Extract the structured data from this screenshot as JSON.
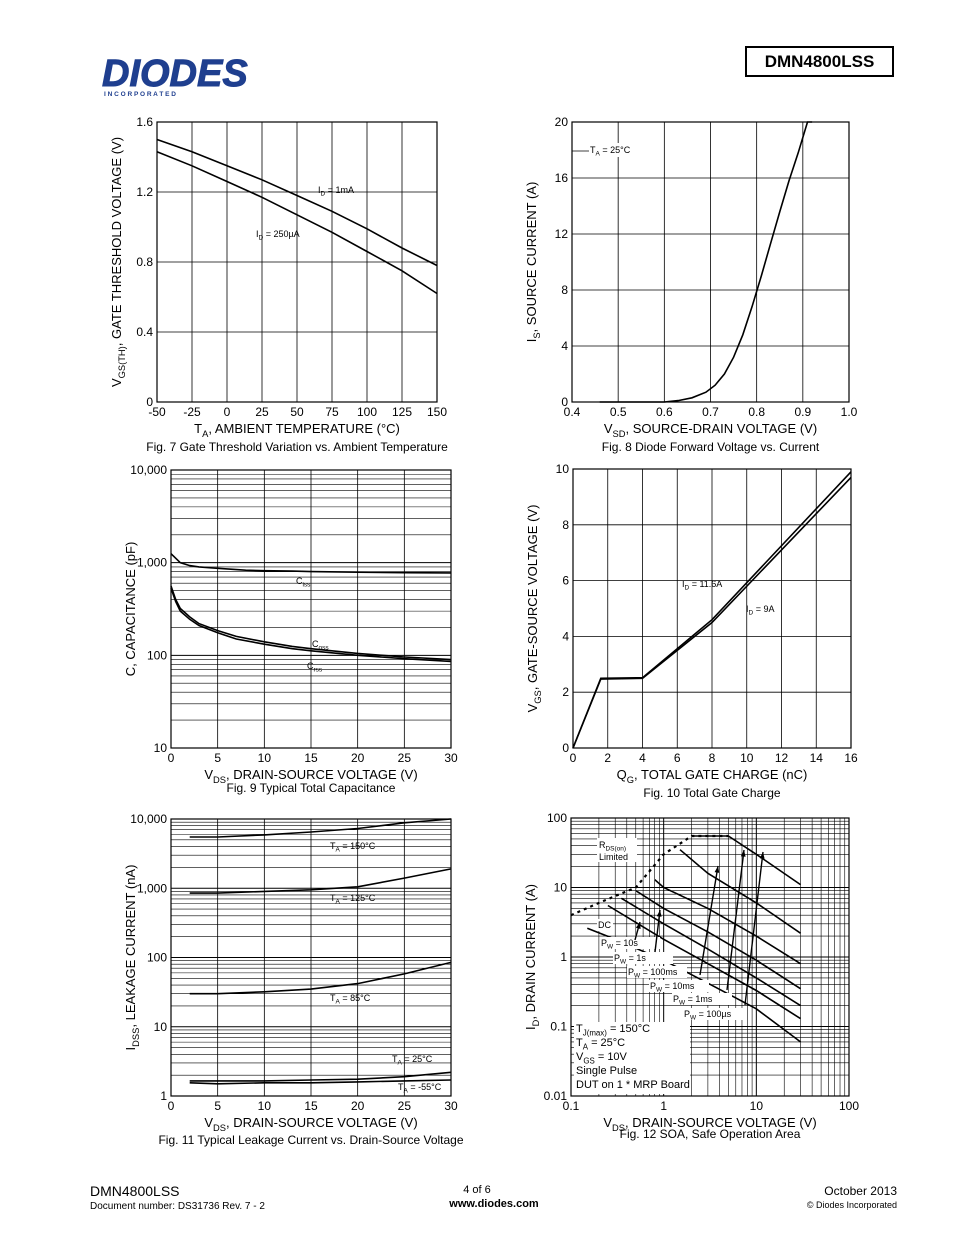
{
  "header": {
    "logo_text": "DIODES",
    "logo_sub": "I N C O R P O R A T E D",
    "part_number": "DMN4800LSS"
  },
  "footer": {
    "part": "DMN4800LSS",
    "doc": "Document number: DS31736 Rev. 7 - 2",
    "page": "4 of 6",
    "url": "www.diodes.com",
    "date": "October 2013",
    "copyright": "© Diodes Incorporated"
  },
  "chart_data": [
    {
      "id": "fig7",
      "type": "line",
      "title": "Fig. 7 Gate Threshold Variation vs. Ambient Temperature",
      "xlabel_main": "T",
      "xlabel_sub": "A",
      "xlabel_rest": ", AMBIENT TEMPERATURE (°C)",
      "ylabel_main": "V",
      "ylabel_sub": "GS(TH)",
      "ylabel_rest": ", GATE THRESHOLD VOLTAGE (V)",
      "xlim": [
        -50,
        150
      ],
      "ylim": [
        0,
        1.6
      ],
      "x_ticks": [
        "-50",
        "-25",
        "0",
        "25",
        "50",
        "75",
        "100",
        "125",
        "150"
      ],
      "y_ticks": [
        "0",
        "0.4",
        "0.8",
        "1.2",
        "1.6"
      ],
      "series": [
        {
          "name": "ID = 1mA",
          "label_main": "I",
          "label_sub": "D",
          "label_rest": " = 1mA",
          "x": [
            -50,
            -25,
            0,
            25,
            50,
            75,
            100,
            125,
            150
          ],
          "y": [
            1.5,
            1.43,
            1.35,
            1.27,
            1.18,
            1.09,
            0.99,
            0.88,
            0.78
          ]
        },
        {
          "name": "ID = 250µA",
          "label_main": "I",
          "label_sub": "D",
          "label_rest": " = 250µA",
          "x": [
            -50,
            -25,
            0,
            25,
            50,
            75,
            100,
            125,
            150
          ],
          "y": [
            1.43,
            1.35,
            1.26,
            1.17,
            1.07,
            0.97,
            0.86,
            0.75,
            0.62
          ]
        }
      ]
    },
    {
      "id": "fig8",
      "type": "line",
      "title": "Fig. 8 Diode Forward Voltage vs. Current",
      "xlabel_main": "V",
      "xlabel_sub": "SD",
      "xlabel_rest": ", SOURCE-DRAIN VOLTAGE (V)",
      "ylabel_main": "I",
      "ylabel_sub": "S",
      "ylabel_rest": ", SOURCE CURRENT (A)",
      "xlim": [
        0.4,
        1.0
      ],
      "ylim": [
        0,
        20
      ],
      "x_ticks": [
        "0.4",
        "0.5",
        "0.6",
        "0.7",
        "0.8",
        "0.9",
        "1.0"
      ],
      "y_ticks": [
        "0",
        "4",
        "8",
        "12",
        "16",
        "20"
      ],
      "annotation_main": "T",
      "annotation_sub": "A",
      "annotation_rest": " = 25°C",
      "series": [
        {
          "x": [
            0.46,
            0.6,
            0.63,
            0.66,
            0.69,
            0.71,
            0.73,
            0.75,
            0.77,
            0.79,
            0.81,
            0.83,
            0.85,
            0.87,
            0.89,
            0.91,
            0.92
          ],
          "y": [
            0,
            0,
            0.1,
            0.3,
            0.7,
            1.2,
            2.0,
            3.2,
            4.8,
            6.8,
            9.0,
            11.3,
            13.6,
            15.8,
            17.8,
            20.2,
            21.0
          ]
        }
      ]
    },
    {
      "id": "fig9",
      "type": "line",
      "title": "Fig. 9 Typical Total Capacitance",
      "xlabel_main": "V",
      "xlabel_sub": "DS",
      "xlabel_rest": ", DRAIN-SOURCE VOLTAGE (V)",
      "ylabel_main": "",
      "ylabel_sub": "",
      "ylabel_rest": "C, CAPACITANCE (pF)",
      "xlim": [
        0,
        30
      ],
      "ylim": [
        10,
        10000
      ],
      "yscale": "log",
      "x_ticks": [
        "0",
        "5",
        "10",
        "15",
        "20",
        "25",
        "30"
      ],
      "y_ticks": [
        "10",
        "100",
        "1,000",
        "10,000"
      ],
      "series": [
        {
          "name": "Ciss",
          "label_main": "C",
          "label_sub": "iss",
          "x": [
            0,
            1,
            2,
            3,
            5,
            8,
            10,
            13,
            15,
            20,
            25,
            30
          ],
          "y": [
            1250,
            1000,
            930,
            900,
            870,
            830,
            820,
            810,
            800,
            790,
            780,
            775
          ]
        },
        {
          "name": "Coss",
          "label_main": "C",
          "label_sub": "oss",
          "x": [
            0,
            0.5,
            1,
            2,
            3,
            5,
            7,
            10,
            13,
            15,
            20,
            25,
            30
          ],
          "y": [
            560,
            400,
            320,
            260,
            220,
            185,
            160,
            140,
            125,
            118,
            105,
            96,
            90
          ]
        },
        {
          "name": "Crss",
          "label_main": "C",
          "label_sub": "rss",
          "x": [
            0,
            0.5,
            1,
            2,
            3,
            5,
            7,
            10,
            13,
            15,
            20,
            25,
            30
          ],
          "y": [
            530,
            380,
            300,
            245,
            210,
            175,
            150,
            132,
            118,
            112,
            100,
            92,
            86
          ]
        }
      ]
    },
    {
      "id": "fig10",
      "type": "line",
      "title": "Fig. 10 Total Gate Charge",
      "xlabel_main": "Q",
      "xlabel_sub": "G",
      "xlabel_rest": ", TOTAL GATE CHARGE (nC)",
      "ylabel_main": "V",
      "ylabel_sub": "GS",
      "ylabel_rest": ", GATE-SOURCE VOLTAGE (V)",
      "xlim": [
        0,
        16
      ],
      "ylim": [
        0,
        10
      ],
      "x_ticks": [
        "0",
        "2",
        "4",
        "6",
        "8",
        "10",
        "12",
        "14",
        "16"
      ],
      "y_ticks": [
        "0",
        "2",
        "4",
        "6",
        "8",
        "10"
      ],
      "series": [
        {
          "name": "ID = 11.6A",
          "label_main": "I",
          "label_sub": "D",
          "label_rest": " = 11.6A",
          "x": [
            0,
            1.6,
            4.0,
            8.0,
            16.0
          ],
          "y": [
            0,
            2.5,
            2.52,
            4.6,
            9.9
          ]
        },
        {
          "name": "ID = 9A",
          "label_main": "I",
          "label_sub": "D",
          "label_rest": " = 9A",
          "x": [
            0,
            1.6,
            4.0,
            8.0,
            16.0
          ],
          "y": [
            0,
            2.47,
            2.5,
            4.5,
            9.7
          ]
        }
      ]
    },
    {
      "id": "fig11",
      "type": "line",
      "title": "Fig. 11 Typical Leakage Current vs. Drain-Source Voltage",
      "xlabel_main": "V",
      "xlabel_sub": "DS",
      "xlabel_rest": ", DRAIN-SOURCE VOLTAGE (V)",
      "ylabel_main": "I",
      "ylabel_sub": "DSS",
      "ylabel_rest": ", LEAKAGE CURRENT (nA)",
      "xlim": [
        0,
        30
      ],
      "ylim": [
        1,
        10000
      ],
      "yscale": "log",
      "x_ticks": [
        "0",
        "5",
        "10",
        "15",
        "20",
        "25",
        "30"
      ],
      "y_ticks": [
        "1",
        "10",
        "100",
        "1,000",
        "10,000"
      ],
      "series": [
        {
          "name": "TA = 150°C",
          "label_main": "T",
          "label_sub": "A",
          "label_rest": " = 150°C",
          "x": [
            2,
            5,
            10,
            15,
            20,
            25,
            30
          ],
          "y": [
            5500,
            5500,
            5900,
            6500,
            7300,
            8800,
            11000
          ]
        },
        {
          "name": "TA = 125°C",
          "label_main": "T",
          "label_sub": "A",
          "label_rest": " = 125°C",
          "x": [
            2,
            5,
            10,
            15,
            20,
            25,
            30
          ],
          "y": [
            850,
            850,
            900,
            950,
            1050,
            1400,
            1900
          ]
        },
        {
          "name": "TA = 85°C",
          "label_main": "T",
          "label_sub": "A",
          "label_rest": " = 85°C",
          "x": [
            2,
            5,
            10,
            15,
            20,
            25,
            30
          ],
          "y": [
            30,
            30,
            32,
            35,
            42,
            58,
            85
          ]
        },
        {
          "name": "TA = 25°C",
          "label_main": "T",
          "label_sub": "A",
          "label_rest": " = 25°C",
          "x": [
            2,
            5,
            10,
            15,
            20,
            25,
            30
          ],
          "y": [
            1.65,
            1.65,
            1.65,
            1.7,
            1.75,
            1.9,
            2.2
          ]
        },
        {
          "name": "TA = -55°C",
          "label_main": "T",
          "label_sub": "A",
          "label_rest": " = -55°C",
          "x": [
            2,
            5,
            10,
            15,
            20,
            25,
            30
          ],
          "y": [
            1.55,
            1.5,
            1.55,
            1.55,
            1.6,
            1.65,
            1.7
          ]
        }
      ]
    },
    {
      "id": "fig12",
      "type": "line",
      "title": "Fig. 12 SOA, Safe Operation Area",
      "xlabel_main": "V",
      "xlabel_sub": "DS",
      "xlabel_rest": ", DRAIN-SOURCE VOLTAGE (V)",
      "ylabel_main": "I",
      "ylabel_sub": "D",
      "ylabel_rest": ", DRAIN CURRENT (A)",
      "xlim": [
        0.1,
        100
      ],
      "ylim": [
        0.01,
        100
      ],
      "xscale": "log",
      "yscale": "log",
      "x_ticks": [
        "0.1",
        "1",
        "10",
        "100"
      ],
      "y_ticks": [
        "0.01",
        "0.1",
        "1",
        "10",
        "100"
      ],
      "rds_label_main": "R",
      "rds_label_sub": "DS(on)",
      "rds_label_line2": "Limited",
      "conditions": [
        {
          "main": "T",
          "sub": "J(max)",
          "rest": " = 150°C"
        },
        {
          "main": "T",
          "sub": "A",
          "rest": " = 25°C"
        },
        {
          "main": "V",
          "sub": "GS",
          "rest": " = 10V"
        },
        {
          "main": "Single Pulse",
          "sub": "",
          "rest": ""
        },
        {
          "main": "DUT on 1 * MRP Board",
          "sub": "",
          "rest": ""
        }
      ],
      "series": [
        {
          "name": "RDS(on) Limited",
          "dashed": true,
          "x": [
            0.1,
            0.2,
            0.5,
            1,
            2,
            5
          ],
          "y": [
            4,
            6,
            10,
            30,
            55,
            55
          ]
        },
        {
          "name": "DC",
          "label_main": "DC",
          "label_sub": "",
          "label_rest": "",
          "x": [
            0.15,
            0.3,
            1,
            3,
            10,
            30
          ],
          "y": [
            2.6,
            1.8,
            0.9,
            0.42,
            0.18,
            0.06
          ]
        },
        {
          "name": "PW = 10s",
          "label_main": "P",
          "label_sub": "W",
          "label_rest": " = 10s",
          "x": [
            0.25,
            1,
            3,
            10,
            30
          ],
          "y": [
            5.5,
            1.8,
            0.8,
            0.33,
            0.13
          ]
        },
        {
          "name": "PW = 1s",
          "label_main": "P",
          "label_sub": "W",
          "label_rest": " = 1s",
          "x": [
            0.35,
            1,
            3,
            10,
            30
          ],
          "y": [
            7,
            3,
            1.3,
            0.5,
            0.2
          ]
        },
        {
          "name": "PW = 100ms",
          "label_main": "P",
          "label_sub": "W",
          "label_rest": " = 100ms",
          "x": [
            0.5,
            1,
            3,
            10,
            30
          ],
          "y": [
            9,
            5,
            2.3,
            0.9,
            0.35
          ]
        },
        {
          "name": "PW = 10ms",
          "label_main": "P",
          "label_sub": "W",
          "label_rest": " = 10ms",
          "x": [
            0.8,
            1,
            3,
            10,
            30
          ],
          "y": [
            13,
            10,
            5,
            2,
            0.8
          ]
        },
        {
          "name": "PW = 1ms",
          "label_main": "P",
          "label_sub": "W",
          "label_rest": " = 1ms",
          "x": [
            1.5,
            3,
            10,
            30
          ],
          "y": [
            35,
            16,
            6,
            2.2
          ]
        },
        {
          "name": "PW = 100µs",
          "label_main": "P",
          "label_sub": "W",
          "label_rest": " = 100µs",
          "x": [
            2,
            5,
            10,
            30
          ],
          "y": [
            55,
            55,
            30,
            11
          ]
        }
      ]
    }
  ]
}
